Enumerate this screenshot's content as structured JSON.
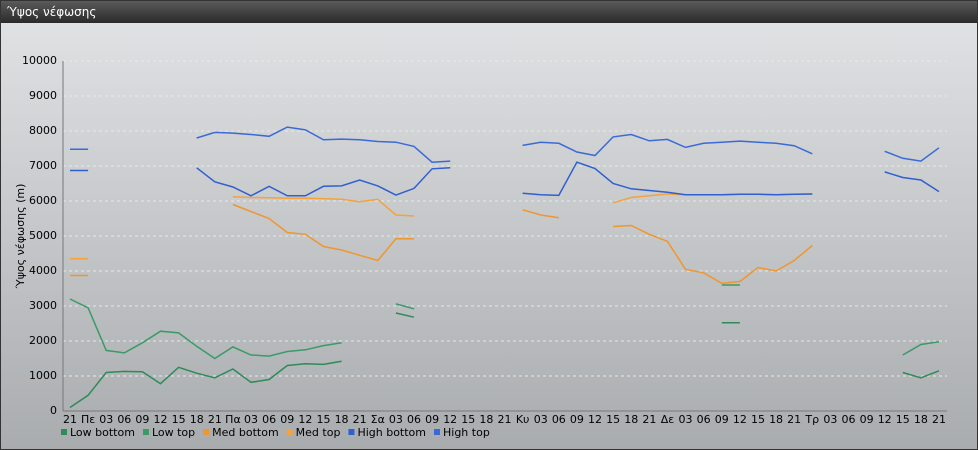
{
  "chart_data": {
    "type": "line",
    "title": "Ύψος νέφωσης",
    "ylabel": "Ύψος νέφωσης (m)",
    "categories": [
      "21",
      "Πε",
      "03",
      "06",
      "09",
      "12",
      "15",
      "18",
      "21",
      "Πα",
      "03",
      "06",
      "09",
      "12",
      "15",
      "18",
      "21",
      "Σα",
      "03",
      "06",
      "09",
      "12",
      "15",
      "18",
      "21",
      "Κυ",
      "03",
      "06",
      "09",
      "12",
      "15",
      "18",
      "21",
      "Δε",
      "03",
      "06",
      "09",
      "12",
      "15",
      "18",
      "21",
      "Τρ",
      "03",
      "06",
      "09",
      "12",
      "15",
      "18",
      "21"
    ],
    "ylim": [
      0,
      10000
    ],
    "yticks": [
      0,
      1000,
      2000,
      3000,
      4000,
      5000,
      6000,
      7000,
      8000,
      9000,
      10000
    ],
    "grid": true,
    "series": [
      {
        "name": "Low bottom",
        "color": "#2e8b57",
        "values": [
          100,
          450,
          1100,
          1130,
          1120,
          780,
          1250,
          1080,
          950,
          1200,
          820,
          900,
          1300,
          1350,
          1330,
          1420,
          null,
          null,
          2800,
          2680,
          null,
          null,
          null,
          null,
          null,
          null,
          null,
          null,
          null,
          null,
          null,
          null,
          null,
          null,
          null,
          null,
          2520,
          2520,
          null,
          null,
          null,
          null,
          null,
          null,
          null,
          null,
          1100,
          950,
          1150
        ]
      },
      {
        "name": "Low top",
        "color": "#3a9a68",
        "values": [
          3200,
          2950,
          1730,
          1660,
          1950,
          2280,
          2230,
          1850,
          1500,
          1830,
          1600,
          1570,
          1700,
          1750,
          1870,
          1950,
          null,
          null,
          3060,
          2920,
          null,
          null,
          null,
          null,
          null,
          null,
          null,
          null,
          null,
          null,
          null,
          null,
          null,
          null,
          null,
          null,
          3600,
          3600,
          null,
          null,
          null,
          null,
          null,
          null,
          null,
          null,
          1600,
          1900,
          1980
        ]
      },
      {
        "name": "Med bottom",
        "color": "#f0962e",
        "values": [
          3870,
          3870,
          null,
          null,
          null,
          null,
          null,
          null,
          null,
          5900,
          5700,
          5500,
          5100,
          5050,
          4700,
          4600,
          4450,
          4300,
          4920,
          4920,
          null,
          null,
          null,
          null,
          null,
          5750,
          5600,
          5520,
          null,
          null,
          5270,
          5300,
          5050,
          4850,
          4050,
          3950,
          3650,
          3700,
          4100,
          4000,
          4300,
          4730,
          null,
          null,
          null,
          null,
          null,
          null,
          null
        ]
      },
      {
        "name": "Med top",
        "color": "#f4a23c",
        "values": [
          4350,
          4350,
          null,
          null,
          null,
          null,
          null,
          null,
          null,
          6120,
          6100,
          6090,
          6080,
          6080,
          6070,
          6050,
          5980,
          6050,
          5600,
          5570,
          null,
          null,
          null,
          null,
          null,
          null,
          null,
          null,
          null,
          null,
          5950,
          6100,
          6150,
          6200,
          6180,
          6180,
          6180,
          6190,
          6190,
          6180,
          6190,
          6200,
          null,
          null,
          null,
          null,
          null,
          null,
          null
        ]
      },
      {
        "name": "High bottom",
        "color": "#2f5fd0",
        "values": [
          6870,
          6870,
          null,
          null,
          null,
          null,
          null,
          6950,
          6550,
          6400,
          6150,
          6420,
          6150,
          6150,
          6420,
          6430,
          6600,
          6430,
          6170,
          6360,
          6920,
          6950,
          null,
          null,
          null,
          6220,
          6180,
          6160,
          7110,
          6930,
          6500,
          6350,
          6300,
          6250,
          6180,
          6180,
          6180,
          6190,
          6190,
          6180,
          6190,
          6200,
          null,
          null,
          null,
          6830,
          6670,
          6600,
          6270
        ]
      },
      {
        "name": "High top",
        "color": "#3a6ad8",
        "values": [
          7480,
          7480,
          null,
          null,
          null,
          null,
          null,
          7800,
          7960,
          7940,
          7900,
          7850,
          8110,
          8030,
          7750,
          7770,
          7750,
          7700,
          7680,
          7560,
          7110,
          7140,
          null,
          null,
          null,
          7590,
          7680,
          7650,
          7400,
          7300,
          7830,
          7900,
          7720,
          7760,
          7530,
          7650,
          7680,
          7710,
          7680,
          7650,
          7580,
          7350,
          null,
          null,
          null,
          7420,
          7220,
          7140,
          7520
        ]
      }
    ]
  }
}
